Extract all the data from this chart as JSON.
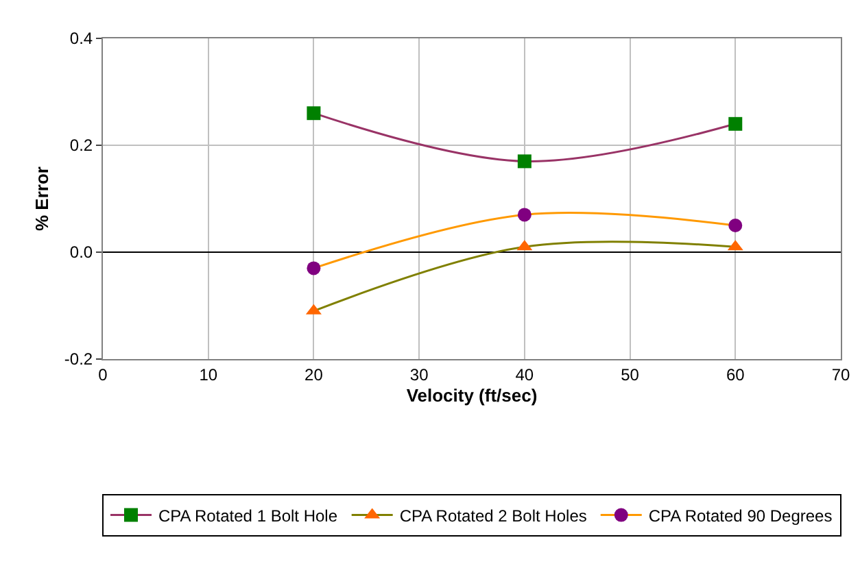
{
  "chart_data": {
    "type": "line",
    "xlabel": "Velocity (ft/sec)",
    "ylabel": "% Error",
    "xlim": [
      0,
      70
    ],
    "xticks": [
      0,
      10,
      20,
      30,
      40,
      50,
      60,
      70
    ],
    "ylim": [
      -0.2,
      0.4
    ],
    "yticks": [
      {
        "value": -0.2,
        "label": "-0.2"
      },
      {
        "value": 0,
        "label": "0.0"
      },
      {
        "value": 0.2,
        "label": "0.2"
      },
      {
        "value": 0.4,
        "label": "0.4"
      }
    ],
    "grid": true,
    "legend": "bottom",
    "x": [
      20,
      40,
      60
    ],
    "series": [
      {
        "name": "CPA Rotated 1 Bolt Hole",
        "color": "#993366",
        "colors": [
          "#008000",
          "#008000",
          "#008000"
        ],
        "marker": "square",
        "values": [
          0.26,
          0.17,
          0.24
        ]
      },
      {
        "name": "CPA Rotated 2 Bolt Holes",
        "color": "#808000",
        "colors": [
          "#ff6600",
          "#ff6600",
          "#ff6600"
        ],
        "marker": "triangle",
        "values": [
          -0.11,
          0.01,
          0.01
        ]
      },
      {
        "name": "CPA Rotated 90 Degrees",
        "color": "#ff9900",
        "colors": [
          "#800080",
          "#800080",
          "#800080"
        ],
        "marker": "circle",
        "values": [
          -0.03,
          0.07,
          0.05
        ]
      }
    ]
  }
}
